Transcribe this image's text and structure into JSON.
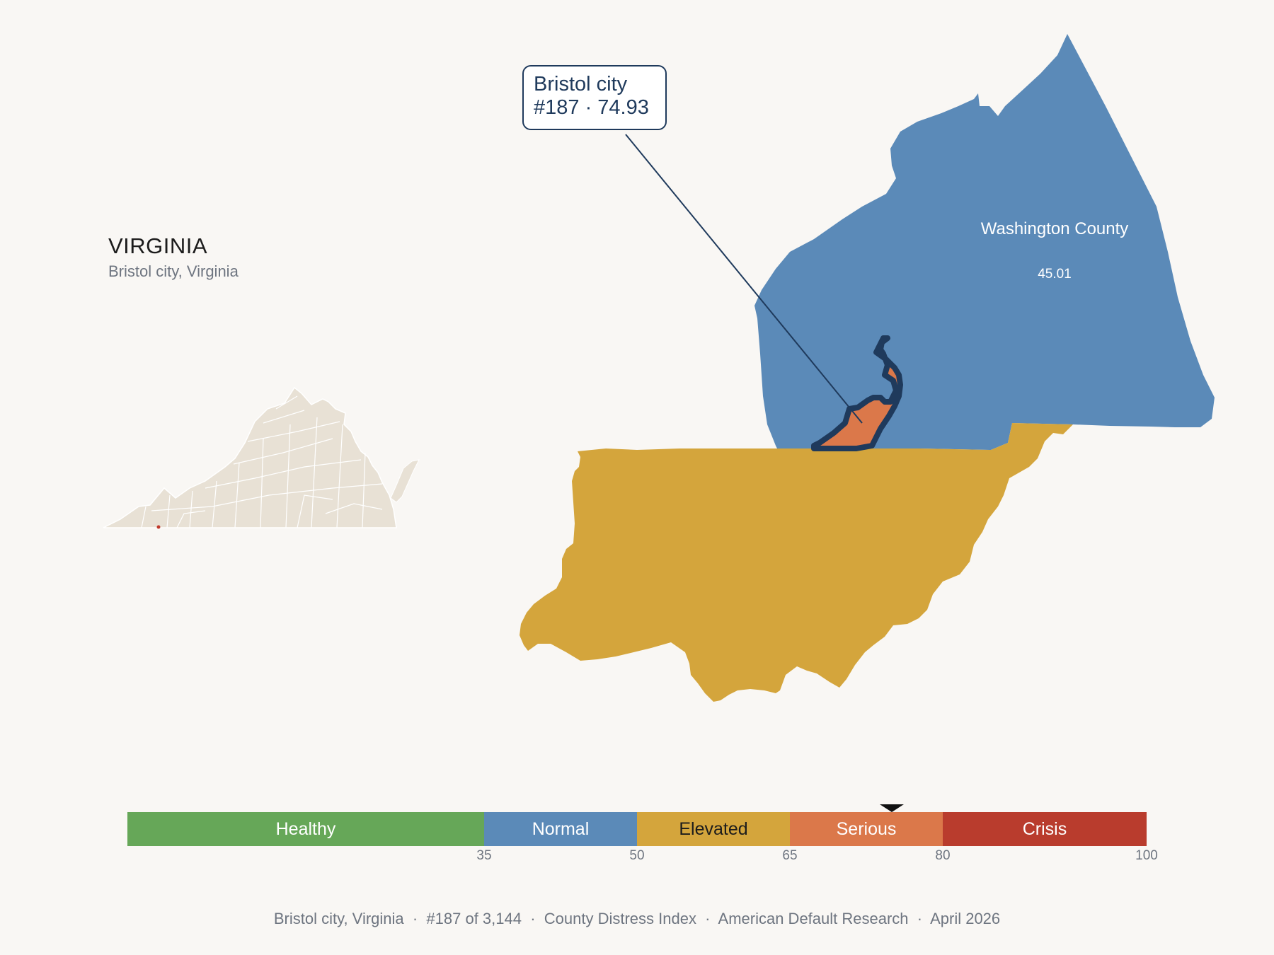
{
  "state": {
    "title": "VIRGINIA",
    "subtitle": "Bristol city, Virginia"
  },
  "callout": {
    "name": "Bristol city",
    "detail": "#187 · 74.93"
  },
  "counties": {
    "selected": {
      "name": "Bristol city",
      "rank": 187,
      "score": 74.93,
      "color": "#db784a",
      "outline": "#1f3a5c"
    },
    "washington": {
      "name": "Washington County",
      "score_label": "45.01",
      "color": "#5b8ab8"
    },
    "southern_neighbor": {
      "color": "#d4a53c"
    }
  },
  "inset": {
    "fill": "#e8e1d5",
    "border": "#ffffff",
    "highlight": "#c0392b"
  },
  "scale": {
    "segments": [
      {
        "label": "Healthy",
        "from": 0,
        "to": 35,
        "color": "#66a758",
        "text_color": "#ffffff"
      },
      {
        "label": "Normal",
        "from": 35,
        "to": 50,
        "color": "#5b8ab8",
        "text_color": "#ffffff"
      },
      {
        "label": "Elevated",
        "from": 50,
        "to": 65,
        "color": "#d4a53c",
        "text_color": "#1c1c1c"
      },
      {
        "label": "Serious",
        "from": 65,
        "to": 80,
        "color": "#db784a",
        "text_color": "#ffffff"
      },
      {
        "label": "Crisis",
        "from": 80,
        "to": 100,
        "color": "#b93c2d",
        "text_color": "#ffffff"
      }
    ],
    "ticks": [
      "35",
      "50",
      "65",
      "80",
      "100"
    ],
    "marker_value": 74.93
  },
  "footer": {
    "text": "Bristol city, Virginia  ·  #187 of 3,144  ·  County Distress Index  ·  American Default Research  ·  April 2026"
  }
}
